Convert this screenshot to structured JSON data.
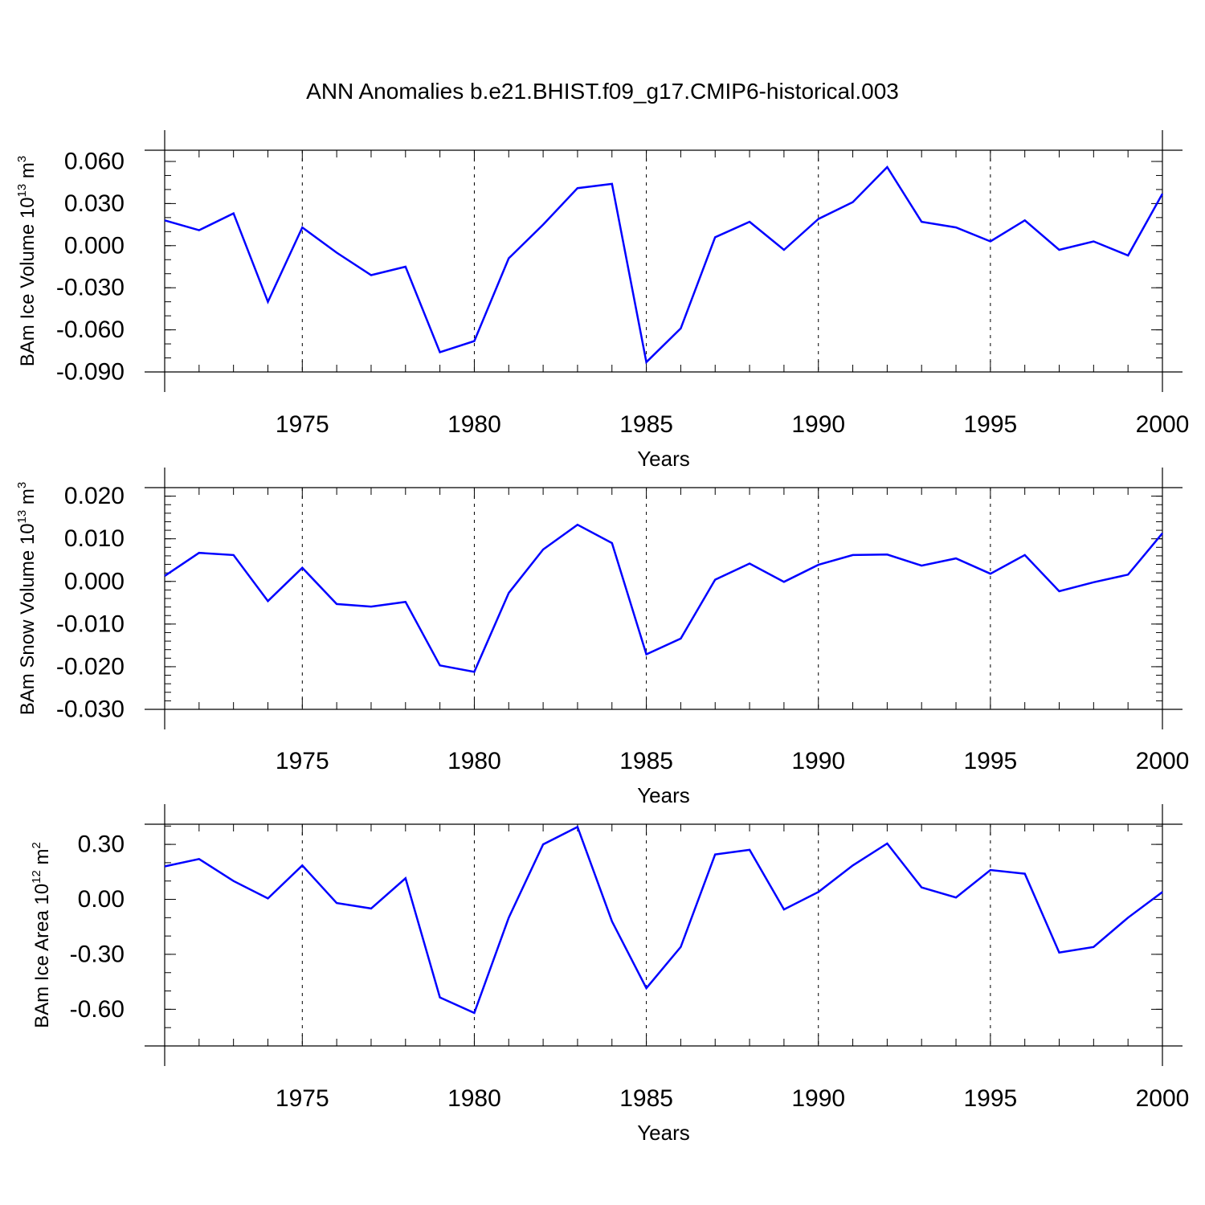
{
  "title": "ANN Anomalies b.e21.BHIST.f09_g17.CMIP6-historical.003",
  "series_color": "#0000ff",
  "chart_data": [
    {
      "type": "line",
      "ylabel_main": "BAm Ice Volume 10",
      "ylabel_exp": "13",
      "ylabel_unit": " m",
      "ylabel_unit_exp": "3",
      "xlabel": "Years",
      "xlim": [
        1971,
        2000
      ],
      "ylim": [
        -0.09,
        0.068
      ],
      "yticks": [
        -0.09,
        -0.06,
        -0.03,
        0.0,
        0.03,
        0.06
      ],
      "ytick_labels": [
        "-0.090",
        "-0.060",
        "-0.030",
        "0.000",
        "0.030",
        "0.060"
      ],
      "yminor_step": 0.01,
      "xticks": [
        1975,
        1980,
        1985,
        1990,
        1995,
        2000
      ],
      "xtick_labels": [
        "1975",
        "1980",
        "1985",
        "1990",
        "1995",
        "2000"
      ],
      "x": [
        1971,
        1972,
        1973,
        1974,
        1975,
        1976,
        1977,
        1978,
        1979,
        1980,
        1981,
        1982,
        1983,
        1984,
        1985,
        1986,
        1987,
        1988,
        1989,
        1990,
        1991,
        1992,
        1993,
        1994,
        1995,
        1996,
        1997,
        1998,
        1999,
        2000
      ],
      "values": [
        0.018,
        0.011,
        0.023,
        -0.04,
        0.013,
        -0.005,
        -0.021,
        -0.015,
        -0.076,
        -0.068,
        -0.009,
        0.015,
        0.041,
        0.044,
        -0.083,
        -0.059,
        0.006,
        0.017,
        -0.003,
        0.019,
        0.031,
        0.056,
        0.017,
        0.013,
        0.003,
        0.018,
        -0.003,
        0.003,
        -0.007,
        0.037
      ]
    },
    {
      "type": "line",
      "ylabel_main": "BAm Snow Volume 10",
      "ylabel_exp": "13",
      "ylabel_unit": " m",
      "ylabel_unit_exp": "3",
      "xlabel": "Years",
      "xlim": [
        1971,
        2000
      ],
      "ylim": [
        -0.03,
        0.022
      ],
      "yticks": [
        -0.03,
        -0.02,
        -0.01,
        0.0,
        0.01,
        0.02
      ],
      "ytick_labels": [
        "-0.030",
        "-0.020",
        "-0.010",
        "0.000",
        "0.010",
        "0.020"
      ],
      "yminor_step": 0.002,
      "xticks": [
        1975,
        1980,
        1985,
        1990,
        1995,
        2000
      ],
      "xtick_labels": [
        "1975",
        "1980",
        "1985",
        "1990",
        "1995",
        "2000"
      ],
      "x": [
        1971,
        1972,
        1973,
        1974,
        1975,
        1976,
        1977,
        1978,
        1979,
        1980,
        1981,
        1982,
        1983,
        1984,
        1985,
        1986,
        1987,
        1988,
        1989,
        1990,
        1991,
        1992,
        1993,
        1994,
        1995,
        1996,
        1997,
        1998,
        1999,
        2000
      ],
      "values": [
        0.0013,
        0.0067,
        0.0062,
        -0.0046,
        0.0032,
        -0.0053,
        -0.0059,
        -0.0048,
        -0.0197,
        -0.0212,
        -0.0027,
        0.0075,
        0.0133,
        0.009,
        -0.0171,
        -0.0134,
        0.0004,
        0.0042,
        -0.0001,
        0.0039,
        0.0062,
        0.0063,
        0.0037,
        0.0054,
        0.0018,
        0.0062,
        -0.0023,
        -0.0002,
        0.0016,
        0.0113
      ]
    },
    {
      "type": "line",
      "ylabel_main": "BAm Ice Area 10",
      "ylabel_exp": "12",
      "ylabel_unit": " m",
      "ylabel_unit_exp": "2",
      "xlabel": "Years",
      "xlim": [
        1971,
        2000
      ],
      "ylim": [
        -0.8,
        0.41
      ],
      "yticks": [
        -0.6,
        -0.3,
        0.0,
        0.3
      ],
      "ytick_labels": [
        "-0.60",
        "-0.30",
        "0.00",
        "0.30"
      ],
      "yminor_step": 0.1,
      "xticks": [
        1975,
        1980,
        1985,
        1990,
        1995,
        2000
      ],
      "xtick_labels": [
        "1975",
        "1980",
        "1985",
        "1990",
        "1995",
        "2000"
      ],
      "x": [
        1971,
        1972,
        1973,
        1974,
        1975,
        1976,
        1977,
        1978,
        1979,
        1980,
        1981,
        1982,
        1983,
        1984,
        1985,
        1986,
        1987,
        1988,
        1989,
        1990,
        1991,
        1992,
        1993,
        1994,
        1995,
        1996,
        1997,
        1998,
        1999,
        2000
      ],
      "values": [
        0.18,
        0.22,
        0.1,
        0.005,
        0.185,
        -0.02,
        -0.05,
        0.115,
        -0.535,
        -0.62,
        -0.1,
        0.3,
        0.395,
        -0.12,
        -0.485,
        -0.26,
        0.245,
        0.27,
        -0.055,
        0.04,
        0.185,
        0.305,
        0.065,
        0.01,
        0.16,
        0.14,
        -0.29,
        -0.26,
        -0.1,
        0.04
      ]
    }
  ]
}
